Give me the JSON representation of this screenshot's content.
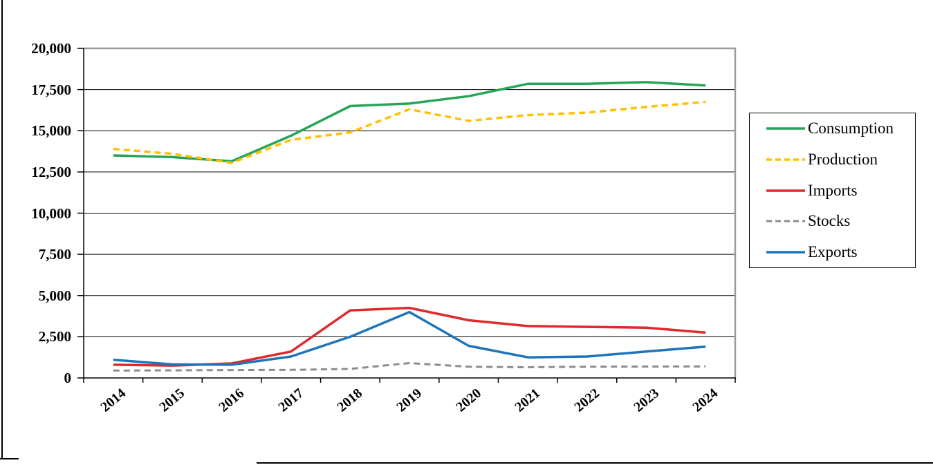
{
  "figure": {
    "background": "#ffffff",
    "plot_border_color": "#9b9b9b",
    "gridline_color": "#000000",
    "axis_color": "#000000"
  },
  "chart_data": {
    "type": "line",
    "title": "",
    "xlabel": "",
    "ylabel": "",
    "x_categories": [
      "2014",
      "2015",
      "2016",
      "2017",
      "2018",
      "2019",
      "2020",
      "2021",
      "2022",
      "2023",
      "2024"
    ],
    "ylim": [
      0,
      20000
    ],
    "y_gridline_step": 2500,
    "grid": "horizontal",
    "legend_position": "right-outside-boxed",
    "y_axis": {
      "ticks": [
        {
          "label": "20,000",
          "value": 20000
        },
        {
          "label": "17,500",
          "value": 17500
        },
        {
          "label": "15,000",
          "value": 15000
        },
        {
          "label": "12,500",
          "value": 12500
        },
        {
          "label": "10,000",
          "value": 10000
        },
        {
          "label": "7,500",
          "value": 7500
        },
        {
          "label": "5,000",
          "value": 5000
        },
        {
          "label": "2,500",
          "value": 2500
        },
        {
          "label": "0",
          "value": 0
        }
      ]
    },
    "series": [
      {
        "name": "Consumption",
        "color": "#28a457",
        "style": "solid",
        "width": 3.5,
        "values": [
          13500,
          13400,
          13150,
          14700,
          16500,
          16650,
          17100,
          17850,
          17850,
          17950,
          17750
        ]
      },
      {
        "name": "Production",
        "color": "#ffc000",
        "style": "dashed",
        "width": 3.5,
        "values": [
          13900,
          13600,
          13050,
          14450,
          14900,
          16300,
          15600,
          15950,
          16100,
          16450,
          16750
        ]
      },
      {
        "name": "Imports",
        "color": "#dd2a2c",
        "style": "solid",
        "width": 3.5,
        "values": [
          800,
          750,
          880,
          1600,
          4100,
          4250,
          3500,
          3150,
          3100,
          3050,
          2750
        ]
      },
      {
        "name": "Stocks",
        "color": "#8c8c8c",
        "style": "dashed",
        "width": 3,
        "values": [
          450,
          460,
          480,
          490,
          550,
          900,
          680,
          650,
          680,
          690,
          700
        ]
      },
      {
        "name": "Exports",
        "color": "#1f74b9",
        "style": "solid",
        "width": 3.5,
        "values": [
          1100,
          820,
          800,
          1300,
          2500,
          4000,
          1950,
          1250,
          1300,
          1600,
          1900
        ]
      }
    ],
    "legend_entries": [
      "Consumption",
      "Production",
      "Imports",
      "Stocks",
      "Exports"
    ]
  }
}
